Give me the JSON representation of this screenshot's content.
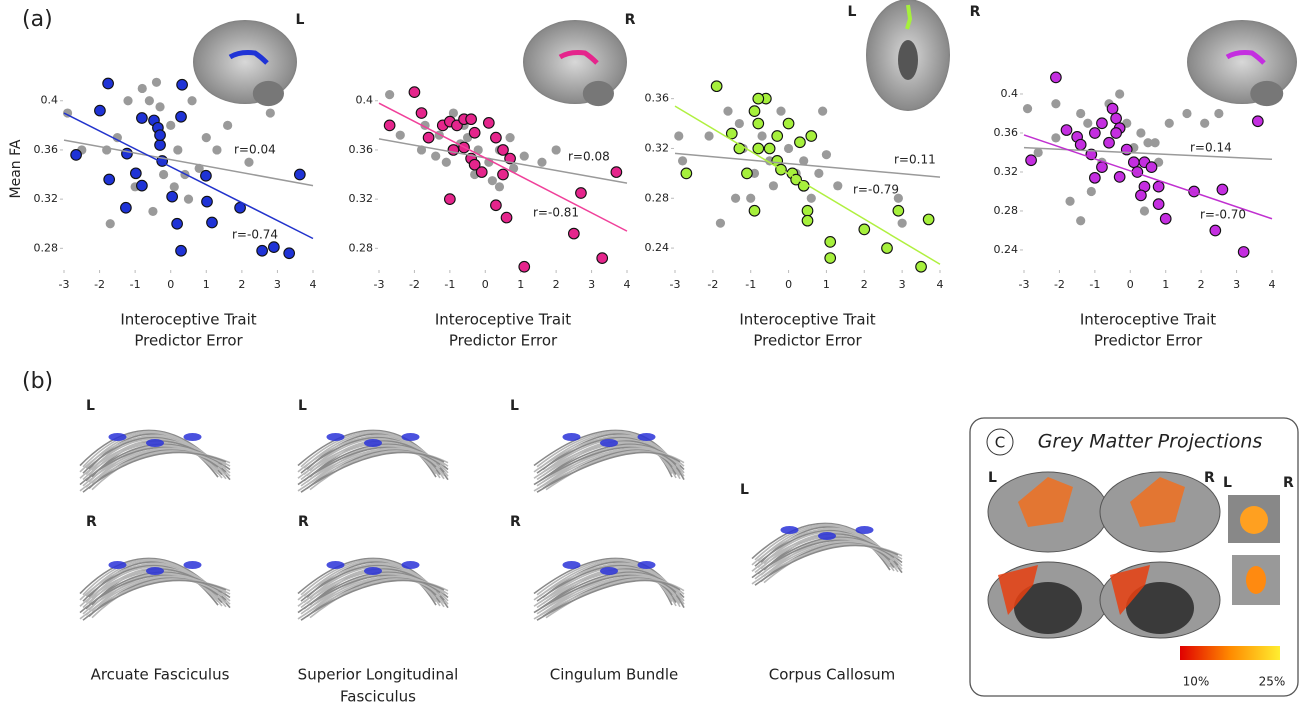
{
  "panel_labels": [
    "(a)",
    "(b)"
  ],
  "chart_data": [
    {
      "type": "scatter",
      "ylabel": "Mean FA",
      "xlabel": [
        "Interoceptive Trait",
        "Predictor Error"
      ],
      "inset_labels": [
        "L"
      ],
      "xlim": [
        -3,
        4
      ],
      "xticks": [
        -3,
        -2,
        -1,
        0,
        1,
        2,
        3,
        4
      ],
      "ylim": [
        0.264,
        0.425
      ],
      "yticks": [
        0.28,
        0.32,
        0.36,
        0.4
      ],
      "series": [
        {
          "color": "#9a9a9a",
          "x": [
            -2.9,
            -2.5,
            -1.8,
            -1.5,
            -1.2,
            -1,
            -0.8,
            -0.6,
            -0.4,
            -0.3,
            -0.2,
            0,
            0.1,
            0.2,
            0.4,
            0.5,
            0.6,
            0.8,
            1,
            1.3,
            1.6,
            2.2,
            2.8,
            -1.7,
            -0.5
          ],
          "y": [
            0.39,
            0.36,
            0.36,
            0.37,
            0.4,
            0.33,
            0.41,
            0.4,
            0.415,
            0.395,
            0.34,
            0.38,
            0.33,
            0.36,
            0.34,
            0.32,
            0.4,
            0.345,
            0.37,
            0.36,
            0.38,
            0.35,
            0.39,
            0.3,
            0.31
          ]
        },
        {
          "color": "#1f33d6",
          "x": [
            -1.76,
            -1.99,
            -2.66,
            -1.73,
            -1.23,
            -0.81,
            -0.47,
            -0.36,
            -0.3,
            -0.3,
            -0.24,
            0.29,
            0.32,
            -0.98,
            -0.81,
            -1.26,
            0.04,
            0.99,
            1.02,
            1.16,
            0.18,
            0.29,
            1.95,
            2.57,
            2.9,
            3.33,
            3.63
          ],
          "y": [
            0.414,
            0.392,
            0.356,
            0.336,
            0.357,
            0.386,
            0.384,
            0.378,
            0.364,
            0.372,
            0.351,
            0.387,
            0.413,
            0.341,
            0.331,
            0.313,
            0.322,
            0.339,
            0.318,
            0.301,
            0.3,
            0.278,
            0.313,
            0.278,
            0.281,
            0.276,
            0.34
          ]
        }
      ],
      "fit_lines": [
        {
          "color": "#9a9a9a",
          "x": [
            -3,
            4
          ],
          "y": [
            0.368,
            0.331
          ]
        },
        {
          "color": "#2233cc",
          "x": [
            -3,
            4
          ],
          "y": [
            0.39,
            0.288
          ]
        }
      ],
      "annotations": [
        {
          "text": "r=0.04",
          "color": "#222222"
        },
        {
          "text": "r=-0.74",
          "color": "#222222"
        }
      ]
    },
    {
      "type": "scatter",
      "xlabel": [
        "Interoceptive Trait",
        "Predictor Error"
      ],
      "inset_labels": [
        "R"
      ],
      "xlim": [
        -3,
        4
      ],
      "xticks": [
        -3,
        -2,
        -1,
        0,
        1,
        2,
        3,
        4
      ],
      "ylim": [
        0.264,
        0.425
      ],
      "yticks": [
        0.28,
        0.32,
        0.36,
        0.4
      ],
      "series": [
        {
          "color": "#9a9a9a",
          "x": [
            -2.7,
            -2.4,
            -1.7,
            -1.4,
            -1.3,
            -1.1,
            -0.9,
            -0.7,
            -0.5,
            -0.3,
            -0.2,
            0.1,
            0.2,
            0.4,
            0.4,
            0.8,
            1.1,
            1.6,
            2,
            -0.6,
            -1.8,
            0.7
          ],
          "y": [
            0.405,
            0.372,
            0.38,
            0.355,
            0.372,
            0.35,
            0.39,
            0.365,
            0.37,
            0.34,
            0.36,
            0.35,
            0.335,
            0.33,
            0.36,
            0.345,
            0.355,
            0.35,
            0.36,
            0.38,
            0.36,
            0.37
          ]
        },
        {
          "color": "#e5258c",
          "x": [
            -2,
            -1.8,
            -2.7,
            -1.6,
            -1.2,
            -1,
            -0.8,
            -0.6,
            -0.4,
            -0.3,
            -0.6,
            -0.9,
            -0.4,
            -0.3,
            -0.1,
            0.1,
            0.3,
            0.5,
            0.7,
            0.5,
            -1,
            0.3,
            0.6,
            1.1,
            2.5,
            2.7,
            3.3,
            3.7
          ],
          "y": [
            0.407,
            0.39,
            0.38,
            0.37,
            0.38,
            0.383,
            0.38,
            0.385,
            0.385,
            0.374,
            0.362,
            0.36,
            0.353,
            0.348,
            0.342,
            0.382,
            0.37,
            0.36,
            0.353,
            0.34,
            0.32,
            0.315,
            0.305,
            0.265,
            0.292,
            0.325,
            0.272,
            0.342
          ]
        }
      ],
      "fit_lines": [
        {
          "color": "#9a9a9a",
          "x": [
            -3,
            4
          ],
          "y": [
            0.369,
            0.333
          ]
        },
        {
          "color": "#f0409a",
          "x": [
            -3,
            4
          ],
          "y": [
            0.398,
            0.294
          ]
        }
      ],
      "annotations": [
        {
          "text": "r=0.08",
          "color": "#9a9a9a"
        },
        {
          "text": "r=-0.81",
          "color": "#222222"
        }
      ]
    },
    {
      "type": "scatter",
      "xlabel": [
        "Interoceptive Trait",
        "Predictor Error"
      ],
      "inset_labels": [
        "L",
        "R"
      ],
      "xlim": [
        -3,
        4
      ],
      "xticks": [
        -3,
        -2,
        -1,
        0,
        1,
        2,
        3,
        4
      ],
      "ylim": [
        0.224,
        0.383
      ],
      "yticks": [
        0.24,
        0.28,
        0.32,
        0.36
      ],
      "series": [
        {
          "color": "#9a9a9a",
          "x": [
            -2.9,
            -2.8,
            -2.1,
            -1.8,
            -1.6,
            -1.2,
            -1,
            -0.7,
            -0.5,
            -0.4,
            -0.2,
            0,
            0.2,
            0.4,
            0.6,
            0.8,
            1,
            1.3,
            2.9,
            -1.3,
            0.9,
            -0.9,
            -1.4,
            3
          ],
          "y": [
            0.33,
            0.31,
            0.33,
            0.26,
            0.35,
            0.32,
            0.28,
            0.33,
            0.31,
            0.29,
            0.35,
            0.32,
            0.3,
            0.31,
            0.28,
            0.3,
            0.315,
            0.29,
            0.28,
            0.34,
            0.35,
            0.3,
            0.28,
            0.26
          ]
        },
        {
          "color": "#a6f03c",
          "x": [
            -1.9,
            -1.5,
            -2.7,
            -1.3,
            -0.9,
            -0.6,
            -0.8,
            -0.3,
            -0.5,
            -0.3,
            -0.2,
            0.1,
            0.2,
            0.4,
            -0.8,
            -1.1,
            -0.9,
            0,
            0.3,
            0.6,
            0.5,
            0.5,
            1.1,
            1.1,
            2,
            2.6,
            2.9,
            3.5,
            3.7,
            -0.8
          ],
          "y": [
            0.37,
            0.332,
            0.3,
            0.32,
            0.35,
            0.36,
            0.34,
            0.33,
            0.32,
            0.31,
            0.303,
            0.3,
            0.295,
            0.29,
            0.32,
            0.3,
            0.27,
            0.34,
            0.325,
            0.33,
            0.27,
            0.262,
            0.245,
            0.232,
            0.255,
            0.24,
            0.27,
            0.225,
            0.263,
            0.36
          ]
        }
      ],
      "fit_lines": [
        {
          "color": "#9a9a9a",
          "x": [
            -3,
            4
          ],
          "y": [
            0.316,
            0.297
          ]
        },
        {
          "color": "#b0f040",
          "x": [
            -3,
            4
          ],
          "y": [
            0.354,
            0.227
          ]
        }
      ],
      "annotations": [
        {
          "text": "r=0.11",
          "color": "#9a9a9a"
        },
        {
          "text": "r=-0.79",
          "color": "#222222"
        }
      ]
    },
    {
      "type": "scatter",
      "xlabel": [
        "Interoceptive Trait",
        "Predictor Error"
      ],
      "inset_labels": [
        "R"
      ],
      "xlim": [
        -3,
        4
      ],
      "xticks": [
        -3,
        -2,
        -1,
        0,
        1,
        2,
        3,
        4
      ],
      "ylim": [
        0.2215,
        0.4246
      ],
      "yticks": [
        0.24,
        0.28,
        0.32,
        0.36,
        0.4
      ],
      "series": [
        {
          "color": "#9a9a9a",
          "x": [
            -2.9,
            -2.6,
            -2.1,
            -1.7,
            -1.4,
            -1.2,
            -1.1,
            -0.8,
            -0.6,
            -0.3,
            -0.1,
            0.1,
            0.3,
            0.5,
            0.7,
            0.8,
            1.1,
            1.6,
            2.1,
            2.5,
            -1.4,
            0.4,
            -2.1
          ],
          "y": [
            0.385,
            0.34,
            0.39,
            0.29,
            0.38,
            0.37,
            0.3,
            0.33,
            0.39,
            0.4,
            0.37,
            0.345,
            0.36,
            0.35,
            0.35,
            0.33,
            0.37,
            0.38,
            0.37,
            0.38,
            0.27,
            0.28,
            0.355
          ]
        },
        {
          "color": "#c42ee0",
          "x": [
            -2.1,
            -1.8,
            -1.5,
            -2.8,
            -1.4,
            -1,
            -0.8,
            -0.5,
            -0.4,
            -0.3,
            -0.4,
            -0.6,
            -1.1,
            -0.8,
            -1,
            -0.1,
            0.1,
            0.2,
            0.4,
            0.4,
            0.6,
            0.3,
            -0.3,
            0.8,
            0.8,
            1,
            1.8,
            2.6,
            2.4,
            3.2,
            3.6
          ],
          "y": [
            0.417,
            0.363,
            0.356,
            0.332,
            0.348,
            0.36,
            0.37,
            0.385,
            0.375,
            0.365,
            0.36,
            0.35,
            0.338,
            0.325,
            0.314,
            0.343,
            0.33,
            0.32,
            0.33,
            0.305,
            0.325,
            0.296,
            0.315,
            0.305,
            0.287,
            0.272,
            0.3,
            0.302,
            0.26,
            0.238,
            0.372
          ]
        }
      ],
      "fit_lines": [
        {
          "color": "#9a9a9a",
          "x": [
            -3,
            4
          ],
          "y": [
            0.345,
            0.333
          ]
        },
        {
          "color": "#c030d0",
          "x": [
            -3,
            4
          ],
          "y": [
            0.358,
            0.272
          ]
        }
      ],
      "annotations": [
        {
          "text": "r=0.14",
          "color": "#222222"
        },
        {
          "text": "r=-0.70",
          "color": "#222222"
        }
      ]
    }
  ],
  "tracts": [
    {
      "views": [
        "L",
        "R"
      ],
      "caption": [
        "Arcuate Fasciculus"
      ]
    },
    {
      "views": [
        "L",
        "R"
      ],
      "caption": [
        "Superior Longitudinal",
        "Fasciculus"
      ]
    },
    {
      "views": [
        "L",
        "R"
      ],
      "caption": [
        "Cingulum Bundle"
      ]
    },
    {
      "views": [
        "L"
      ],
      "caption": [
        "Corpus Callosum"
      ]
    }
  ],
  "grey_matter": {
    "badge": "C",
    "title": "Grey Matter Projections",
    "hemispheres": [
      "L",
      "R"
    ],
    "inset_hemispheres": [
      "L",
      "R"
    ],
    "colorbar": [
      "10%",
      "25%"
    ]
  }
}
